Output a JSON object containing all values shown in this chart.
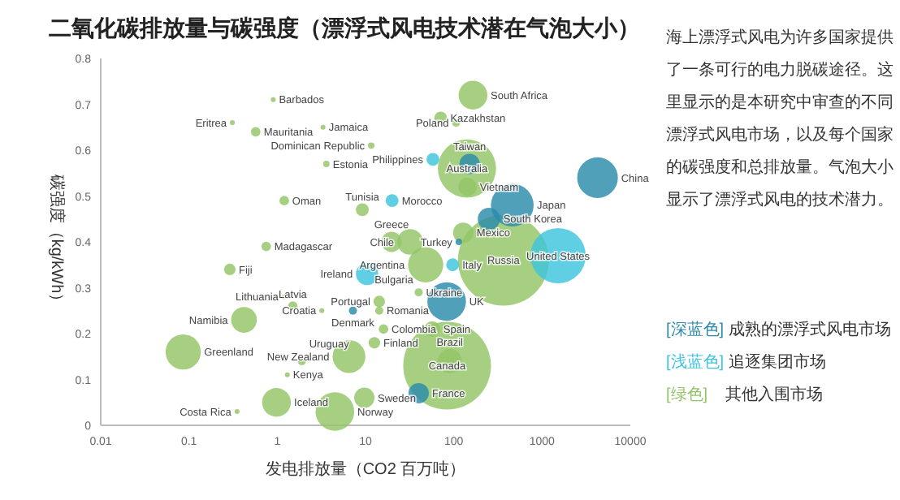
{
  "chart_data": {
    "type": "bubble",
    "title": "二氧化碳排放量与碳强度（漂浮式风电技术潜在气泡大小）",
    "xlabel": "发电排放量（CO2 百万吨）",
    "ylabel": "碳强度（kg/kWh）",
    "log": "x",
    "xlim": [
      0.01,
      10000
    ],
    "xticks": [
      0.01,
      0.1,
      1,
      10,
      100,
      1000,
      10000
    ],
    "ylim": [
      0,
      0.8
    ],
    "yticks": [
      0,
      0.1,
      0.2,
      0.3,
      0.4,
      0.5,
      0.6,
      0.7,
      0.8
    ],
    "grid": false,
    "legend": "right",
    "series": [
      {
        "name": "[深蓝色] 成熟的漂浮式风电市场",
        "color": "#2b8bab",
        "x": [
          151,
          4250,
          460,
          250,
          83,
          40,
          114,
          7.2
        ],
        "values": [
          0.57,
          0.54,
          0.48,
          0.45,
          0.27,
          0.07,
          0.4,
          0.25
        ],
        "sizes": [
          0.05,
          0.2,
          0.22,
          0.06,
          0.18,
          0.05,
          0.005,
          0.008
        ]
      },
      {
        "name": "[浅蓝色] 追逐集团市场",
        "color": "#3ec5dd",
        "x": [
          58,
          20,
          1520,
          97,
          10.4
        ],
        "values": [
          0.58,
          0.49,
          0.37,
          0.35,
          0.33
        ],
        "sizes": [
          0.02,
          0.02,
          0.37,
          0.02,
          0.06
        ]
      },
      {
        "name": "[绿色]    其他入围市场",
        "color": "#93c566",
        "x": [
          0.9,
          0.31,
          0.57,
          3.3,
          71,
          106,
          165,
          11.6,
          141,
          143,
          3.6,
          1.2,
          9.2,
          128,
          32,
          19.7,
          365,
          48,
          10.9,
          40,
          14.3,
          14.3,
          3.2,
          1.5,
          1.2,
          16,
          57,
          84,
          90,
          12.6,
          6.5,
          9.7,
          4.5,
          1.9,
          1.3,
          0.98,
          0.35,
          0.086,
          0.42,
          0.29,
          0.75
        ],
        "values": [
          0.71,
          0.66,
          0.64,
          0.65,
          0.67,
          0.66,
          0.72,
          0.61,
          0.56,
          0.52,
          0.57,
          0.49,
          0.47,
          0.42,
          0.4,
          0.4,
          0.36,
          0.35,
          0.34,
          0.29,
          0.27,
          0.25,
          0.25,
          0.26,
          0.28,
          0.21,
          0.21,
          0.13,
          0.14,
          0.18,
          0.15,
          0.06,
          0.03,
          0.14,
          0.11,
          0.05,
          0.03,
          0.16,
          0.23,
          0.34,
          0.39
        ],
        "sizes": [
          0.003,
          0.003,
          0.011,
          0.003,
          0.02,
          0.008,
          0.1,
          0.005,
          0.41,
          0.04,
          0.005,
          0.011,
          0.02,
          0.05,
          0.08,
          0.05,
          1,
          0.15,
          0.003,
          0.008,
          0.016,
          0.008,
          0.003,
          0.011,
          0.003,
          0.011,
          0.03,
          0.93,
          0.07,
          0.016,
          0.13,
          0.05,
          0.18,
          0.008,
          0.003,
          0.1,
          0.003,
          0.15,
          0.08,
          0.016,
          0.011
        ]
      }
    ],
    "annotations": [
      "海上漂浮式风电为许多国家提供了一条可行的电力脱碳途径。这里显示的是本研究中审查的不同漂浮式风电市场，以及每个国家的碳强度和总排放量。气泡大小显示了漂浮式风电的技术潜力。",
      {
        "text": "Russia",
        "x": 365,
        "y": 0.36
      },
      {
        "text": "Canada",
        "x": 84,
        "y": 0.13
      },
      {
        "text": "China",
        "x": 4250,
        "y": 0.54
      },
      {
        "text": "United States",
        "x": 1520,
        "y": 0.37
      },
      {
        "text": "Japan",
        "x": 460,
        "y": 0.48
      },
      {
        "text": "Australia",
        "x": 141,
        "y": 0.56
      },
      {
        "text": "Taiwan",
        "x": 151,
        "y": 0.57
      },
      {
        "text": "UK",
        "x": 83,
        "y": 0.27
      },
      {
        "text": "Brazil",
        "x": 90,
        "y": 0.14
      },
      {
        "text": "South Africa",
        "x": 165,
        "y": 0.72
      },
      {
        "text": "Kazakhstan",
        "x": 71,
        "y": 0.67
      },
      {
        "text": "Poland",
        "x": 106,
        "y": 0.66
      },
      {
        "text": "Dominican Republic",
        "x": 11.6,
        "y": 0.61
      },
      {
        "text": "Philippines",
        "x": 58,
        "y": 0.58
      },
      {
        "text": "Vietnam",
        "x": 143,
        "y": 0.52
      },
      {
        "text": "Morocco",
        "x": 20,
        "y": 0.49
      },
      {
        "text": "South Korea",
        "x": 250,
        "y": 0.45
      },
      {
        "text": "Mexico",
        "x": 128,
        "y": 0.42
      },
      {
        "text": "Turkey",
        "x": 114,
        "y": 0.4
      },
      {
        "text": "Chile",
        "x": 32,
        "y": 0.4
      },
      {
        "text": "Greece",
        "x": 19.7,
        "y": 0.4
      },
      {
        "text": "Argentina",
        "x": 48,
        "y": 0.35
      },
      {
        "text": "Italy",
        "x": 97,
        "y": 0.35
      },
      {
        "text": "Ireland",
        "x": 10.4,
        "y": 0.33
      },
      {
        "text": "Bulgaria",
        "x": 10.9,
        "y": 0.34
      },
      {
        "text": "Ukraine",
        "x": 40,
        "y": 0.29
      },
      {
        "text": "Portugal",
        "x": 14.3,
        "y": 0.27
      },
      {
        "text": "Romania",
        "x": 14.3,
        "y": 0.25
      },
      {
        "text": "Denmark",
        "x": 7.2,
        "y": 0.25
      },
      {
        "text": "Croatia",
        "x": 3.2,
        "y": 0.25
      },
      {
        "text": "Colombia",
        "x": 16,
        "y": 0.21
      },
      {
        "text": "Spain",
        "x": 57,
        "y": 0.21
      },
      {
        "text": "Finland",
        "x": 12.6,
        "y": 0.18
      },
      {
        "text": "New Zealand",
        "x": 6.5,
        "y": 0.15
      },
      {
        "text": "France",
        "x": 40,
        "y": 0.07
      },
      {
        "text": "Sweden",
        "x": 9.7,
        "y": 0.06
      },
      {
        "text": "Norway",
        "x": 4.5,
        "y": 0.03
      },
      {
        "text": "Iceland",
        "x": 0.98,
        "y": 0.05
      },
      {
        "text": "Costa Rica",
        "x": 0.35,
        "y": 0.03
      },
      {
        "text": "Kenya",
        "x": 1.3,
        "y": 0.11
      },
      {
        "text": "Uruguay",
        "x": 1.9,
        "y": 0.14
      },
      {
        "text": "Greenland",
        "x": 0.086,
        "y": 0.16
      },
      {
        "text": "Namibia",
        "x": 0.42,
        "y": 0.23
      },
      {
        "text": "Latvia",
        "x": 1.5,
        "y": 0.26
      },
      {
        "text": "Lithuania",
        "x": 1.2,
        "y": 0.28
      },
      {
        "text": "Fiji",
        "x": 0.29,
        "y": 0.34
      },
      {
        "text": "Madagascar",
        "x": 0.75,
        "y": 0.39
      },
      {
        "text": "Oman",
        "x": 1.2,
        "y": 0.49
      },
      {
        "text": "Tunisia",
        "x": 9.2,
        "y": 0.47
      },
      {
        "text": "Estonia",
        "x": 3.6,
        "y": 0.57
      },
      {
        "text": "Mauritania",
        "x": 0.57,
        "y": 0.64
      },
      {
        "text": "Eritrea",
        "x": 0.31,
        "y": 0.66
      },
      {
        "text": "Jamaica",
        "x": 3.3,
        "y": 0.65
      },
      {
        "text": "Barbados",
        "x": 0.9,
        "y": 0.71
      }
    ]
  }
}
